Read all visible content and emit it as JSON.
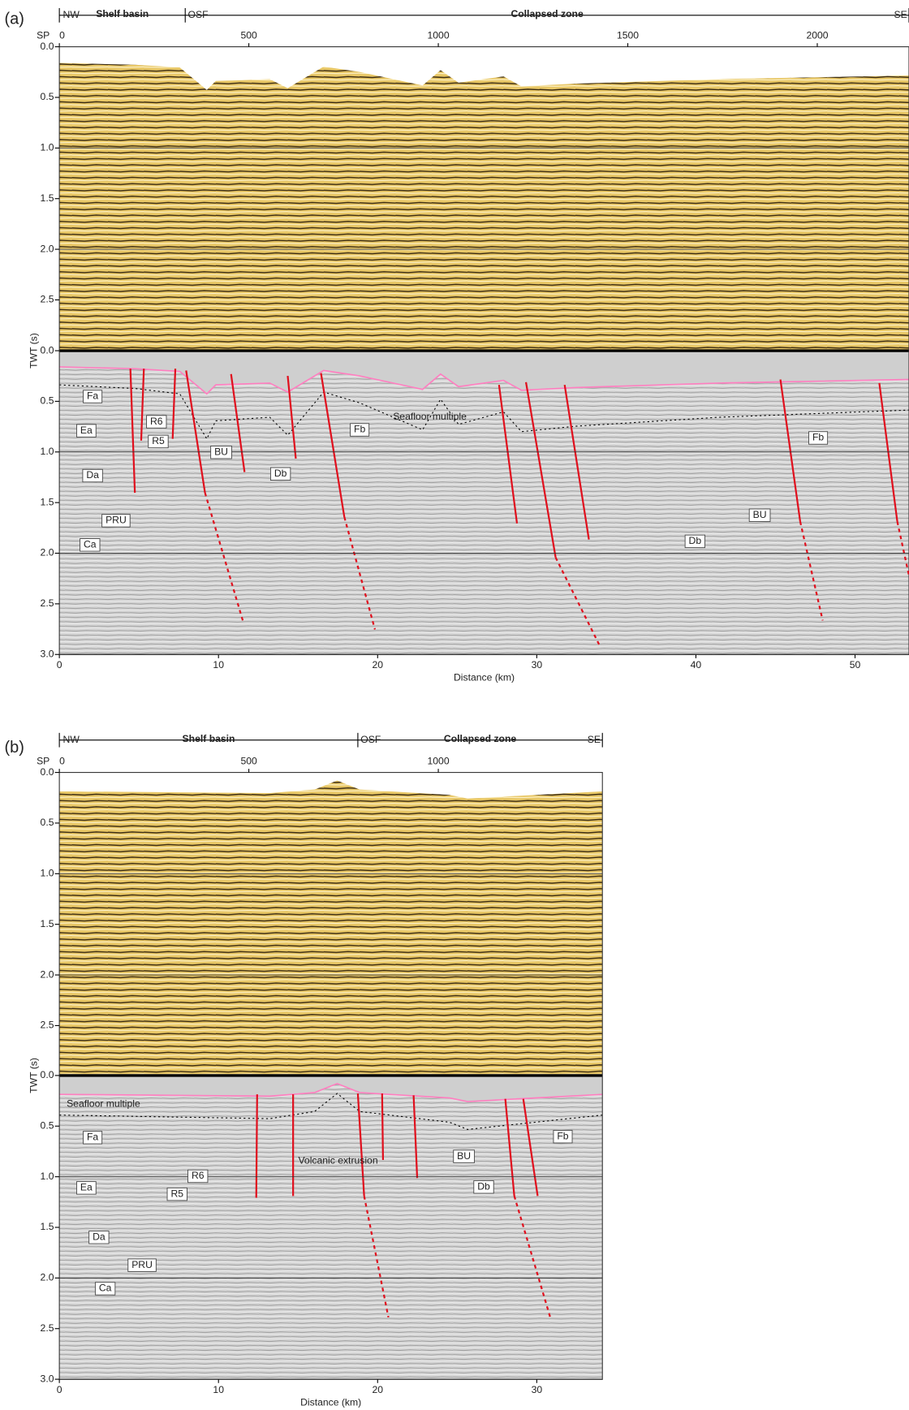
{
  "panels": [
    {
      "label": "(a)",
      "header": {
        "left": "NW",
        "zones": [
          "Shelf basin",
          "OSF",
          "Collapsed zone"
        ],
        "right": "SE"
      },
      "sp_label": "SP",
      "sp_ticks": [
        "0",
        "500",
        "1000",
        "1500",
        "2000"
      ],
      "y_label": "TWT (s)",
      "twt_ticks_top": [
        "0.0",
        "0.5",
        "1.0",
        "1.5",
        "2.0",
        "2.5"
      ],
      "twt_ticks_bottom": [
        "0.0",
        "0.5",
        "1.0",
        "1.5",
        "2.0",
        "2.5",
        "3.0"
      ],
      "distance_ticks": [
        "0",
        "10",
        "20",
        "30",
        "40",
        "50"
      ],
      "x_label": "Distance (km)",
      "annotations": [
        "Fa",
        "Ea",
        "Da",
        "Ca",
        "PRU",
        "R6",
        "R5",
        "BU",
        "Db",
        "Fb",
        "Seafloor multiple",
        "BU",
        "Db",
        "Fb"
      ]
    },
    {
      "label": "(b)",
      "header": {
        "left": "NW",
        "zones": [
          "Shelf basin",
          "OSF",
          "Collapsed zone"
        ],
        "right": "SE"
      },
      "sp_label": "SP",
      "sp_ticks": [
        "0",
        "500",
        "1000"
      ],
      "y_label": "TWT (s)",
      "twt_ticks_top": [
        "0.0",
        "0.5",
        "1.0",
        "1.5",
        "2.0",
        "2.5"
      ],
      "twt_ticks_bottom": [
        "0.0",
        "0.5",
        "1.0",
        "1.5",
        "2.0",
        "2.5",
        "3.0"
      ],
      "distance_ticks": [
        "0",
        "10",
        "20",
        "30"
      ],
      "x_label": "Distance (km)",
      "annotations": [
        "Seafloor multiple",
        "Fa",
        "Ea",
        "R6",
        "R5",
        "Da",
        "PRU",
        "Ca",
        "Volcanic extrusion",
        "BU",
        "Db",
        "Fb"
      ]
    }
  ]
}
